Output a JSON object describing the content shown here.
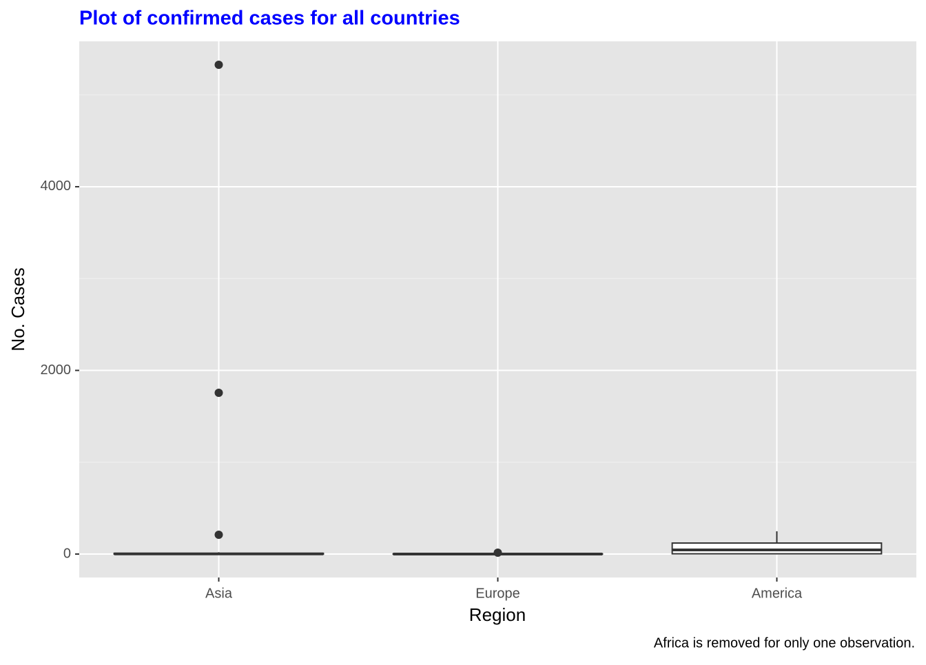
{
  "chart_data": {
    "type": "box",
    "title": "Plot of confirmed cases for all countries",
    "x_label": "Region",
    "y_label": "No. Cases",
    "caption": "Africa is removed for only one observation.",
    "categories": [
      "Asia",
      "Europe",
      "America"
    ],
    "boxes": [
      {
        "min": 0,
        "q1": 0,
        "median": 2,
        "q3": 8,
        "max": 20,
        "outliers": [
          5328,
          1756,
          210
        ]
      },
      {
        "min": 0,
        "q1": 0,
        "median": 0,
        "q3": 2,
        "max": 5,
        "outliers": [
          15
        ]
      },
      {
        "min": 0,
        "q1": 3,
        "median": 45,
        "q3": 120,
        "max": 248,
        "outliers": []
      }
    ],
    "ylim": [
      -255,
      5583
    ],
    "yticks": [
      0,
      2000,
      4000
    ],
    "minor_yticks": [
      1000,
      3000,
      5000
    ],
    "grid": true,
    "color": "#333333",
    "title_color": "#0000ff"
  }
}
